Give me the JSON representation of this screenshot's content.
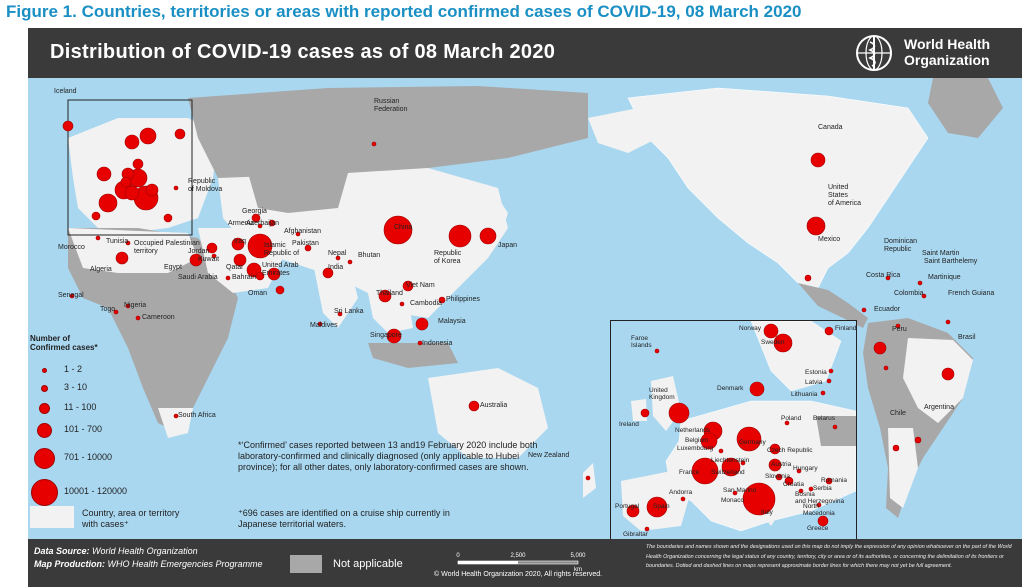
{
  "figure_caption": "Figure 1. Countries, territories or areas with reported confirmed cases of COVID-19, 08 March 2020",
  "map_title": "Distribution of COVID-19 cases as of 08 March 2020",
  "organization": "World Health\nOrganization",
  "legend": {
    "title": "Number of\nConfirmed cases*",
    "classes": [
      "1 - 2",
      "3 - 10",
      "11 - 100",
      "101 - 700",
      "701 - 10000",
      "10001 - 120000"
    ],
    "with_cases": "Country, area or territory\nwith cases⁺",
    "not_applicable": "Not applicable"
  },
  "colors": {
    "ocean": "#a9d7f0",
    "land_no_cases": "#a8a8a8",
    "land_with_cases": "#f2f2f2",
    "marker": "#e60000",
    "dark_bar": "#3a3a3a"
  },
  "note_confirmed": "*‘Confirmed’ cases reported between 13 and19 February 2020 include both laboratory-confirmed and clinically diagnosed (only applicable to Hubei province); for all other dates, only laboratory-confirmed cases are shown.",
  "note_cruise": "⁺696 cases are identified on a cruise ship currently in Japanese territorial waters.",
  "footer": {
    "data_source_label": "Data Source",
    "data_source": "World Health Organization",
    "map_production_label": "Map Production",
    "map_production": "WHO Health Emergencies Programme",
    "copyright": "© World Health Organization 2020, All rights reserved.",
    "scale_ticks": [
      "0",
      "2,500",
      "5,000"
    ],
    "scale_unit": "km",
    "disclaimer": "The boundaries and names shown and the designations used on this map do not imply the expression of any opinion whatsoever on the part of the World Health Organization concerning the legal status of any country, territory, city or area or of its authorities, or concerning the delimitation of its frontiers or boundaries. Dotted and dashed lines on maps represent approximate border lines for which there may not yet be full agreement."
  },
  "places": {
    "iceland": "Iceland",
    "russia": "Russian\nFederation",
    "canada": "Canada",
    "usa": "United\nStates\nof America",
    "mexico": "Mexico",
    "dominican": "Dominican\nRepublic",
    "saint_martin": "Saint Martin",
    "saint_barth": "Saint Barthelemy",
    "martinique": "Martinique",
    "costa_rica": "Costa Rica",
    "colombia": "Colombia",
    "french_guiana": "French Guiana",
    "ecuador": "Ecuador",
    "peru": "Peru",
    "brasil": "Brasil",
    "chile": "Chile",
    "argentina": "Argentina",
    "morocco": "Morocco",
    "algeria": "Algeria",
    "tunisia": "Tunisia",
    "senegal": "Senegal",
    "togo": "Togo",
    "nigeria": "Nigeria",
    "cameroon": "Cameroon",
    "south_africa": "South Africa",
    "egypt": "Egypt",
    "occupied_pal": "Occupied Palestinian\nterritory",
    "jordan": "Jordan",
    "saudi": "Saudi Arabia",
    "bahrain": "Bahrain",
    "qatar": "Qatar",
    "kuwait": "Kuwait",
    "uae": "United Arab\nEmirates",
    "oman": "Oman",
    "iran": "Islamic\nRepublic of",
    "iraq": "Iraq",
    "georgia": "Georgia",
    "armenia": "Armenia",
    "azerbaijan": "Azerbaijan",
    "afghanistan": "Afghanistan",
    "pakistan": "Pakistan",
    "india": "India",
    "nepal": "Nepal",
    "bhutan": "Bhutan",
    "sri_lanka": "Sri Lanka",
    "maldives": "Maldives",
    "china": "China",
    "korea": "Republic\nof Korea",
    "japan": "Japan",
    "thailand": "Thailand",
    "viet_nam": "Viet Nam",
    "cambodia": "Cambodia",
    "philippines": "Philippines",
    "malaysia": "Malaysia",
    "singapore": "Singapore",
    "indonesia": "Indonesia",
    "australia": "Australia",
    "new_zealand": "New Zealand",
    "republic_moldova": "Republic\nof Moldova"
  },
  "inset_places": {
    "faroe": "Faroe\nIslands",
    "norway": "Norway",
    "finland": "Finland",
    "sweden": "Sweden",
    "estonia": "Estonia",
    "latvia": "Latvia",
    "lithuania": "Lithuania",
    "denmark": "Denmark",
    "uk": "United\nKingdom",
    "ireland": "Ireland",
    "netherlands": "Netherlands",
    "belgium": "Belgium",
    "luxembourg": "Luxembourg",
    "belarus": "Belarus",
    "poland": "Poland",
    "germany": "Germany",
    "czech": "Czech Republic",
    "liechtenstein": "Liechtenstein",
    "austria": "Austria",
    "switzerland": "Switzerland",
    "hungary": "Hungary",
    "slovenia": "Slovenia",
    "croatia": "Croatia",
    "romania": "Romania",
    "france": "France",
    "san_marino": "San Marino",
    "monaco": "Monaco",
    "serbia": "Serbia",
    "bosnia": "Bosnia\nand Herzegovina",
    "north_macedonia": "North\nMacedonia",
    "italy": "Italy",
    "andorra": "Andorra",
    "greece": "Greece",
    "portugal": "Portugal",
    "spain": "Spain",
    "gibraltar": "Gibraltar"
  }
}
